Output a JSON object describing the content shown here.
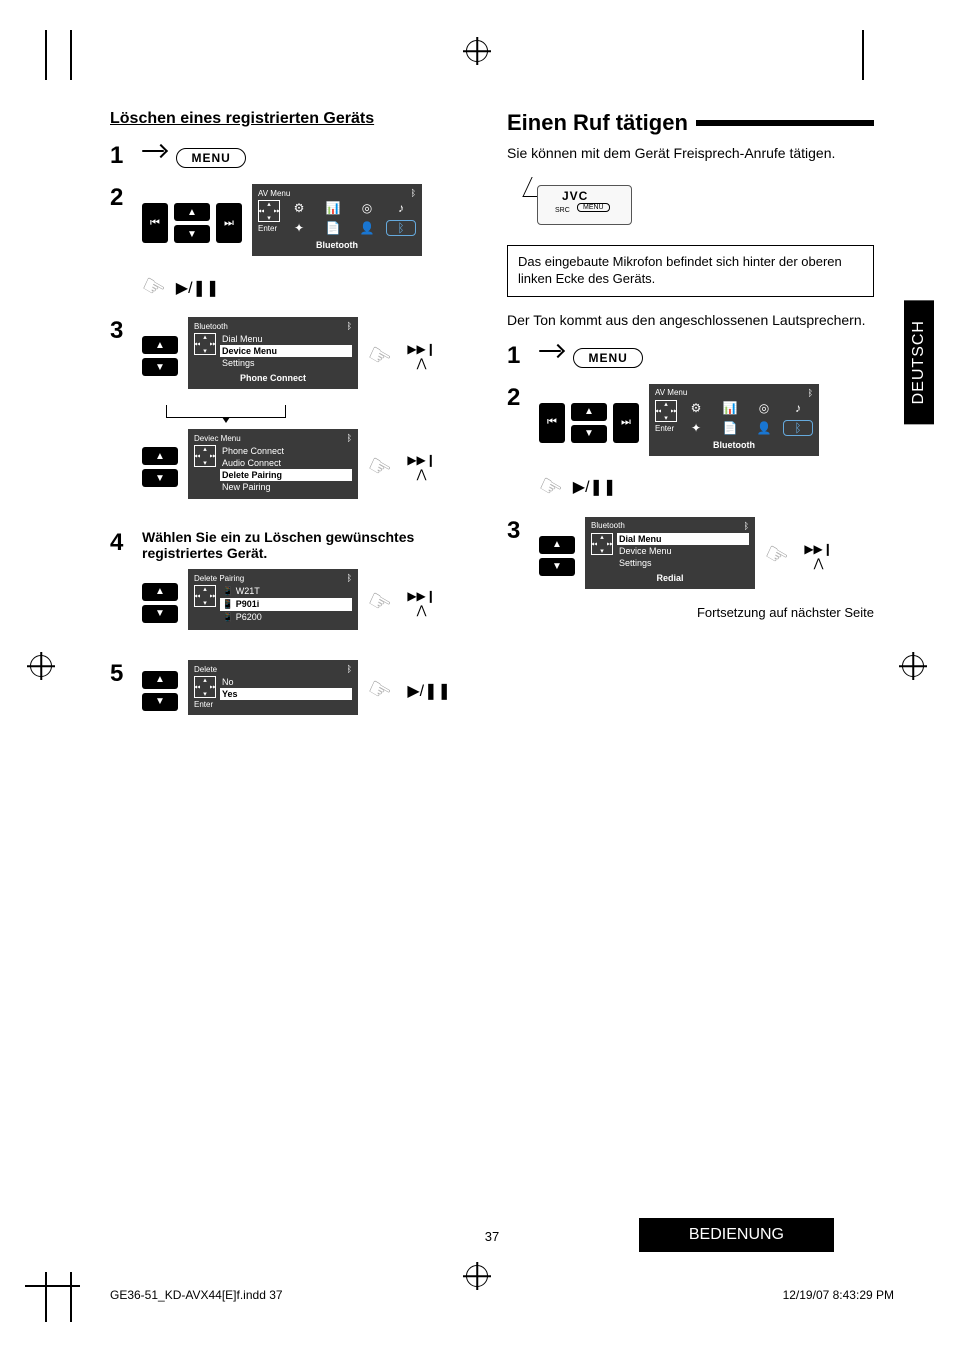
{
  "left": {
    "heading": "Löschen eines registrierten Geräts",
    "step1": {
      "menu_label": "MENU"
    },
    "step2": {
      "screen_title": "AV Menu",
      "enter_label": "Enter",
      "footer": "Bluetooth"
    },
    "step3a": {
      "screen_title": "Bluetooth",
      "items": [
        "Dial Menu",
        "Device Menu",
        "Settings"
      ],
      "highlight_index": 1,
      "footer": "Phone Connect"
    },
    "step3b": {
      "screen_title": "Deviec Menu",
      "items": [
        "Phone Connect",
        "Audio Connect",
        "Delete Pairing",
        "New Pairing"
      ],
      "highlight_index": 2
    },
    "step4_text": "Wählen Sie ein zu Löschen gewünschtes registriertes Gerät.",
    "step4_screen": {
      "screen_title": "Delete Pairing",
      "items": [
        "W21T",
        "P901i",
        "P6200"
      ],
      "highlight_index": 1
    },
    "step5_screen": {
      "screen_title": "Delete",
      "items": [
        "No",
        "Yes"
      ],
      "highlight_index": 1,
      "enter_label": "Enter"
    }
  },
  "right": {
    "heading": "Einen Ruf tätigen",
    "intro": "Sie können mit dem Gerät Freisprech-Anrufe tätigen.",
    "device": {
      "brand": "JVC",
      "src": "SRC",
      "menu": "MENU"
    },
    "note": "Das eingebaute Mikrofon befindet sich hinter der oberen linken Ecke des Geräts.",
    "speaker_text": "Der Ton kommt aus den angeschlossenen Lautsprechern.",
    "step1": {
      "menu_label": "MENU"
    },
    "step2": {
      "screen_title": "AV Menu",
      "enter_label": "Enter",
      "footer": "Bluetooth"
    },
    "step3": {
      "screen_title": "Bluetooth",
      "items": [
        "Dial Menu",
        "Device Menu",
        "Settings"
      ],
      "highlight_index": 0,
      "footer": "Redial"
    },
    "continued": "Fortsetzung auf nächster Seite"
  },
  "side_tab": "DEUTSCH",
  "footer_tab": "BEDIENUNG",
  "page_number": "37",
  "indd": {
    "file": "GE36-51_KD-AVX44[E]f.indd   37",
    "timestamp": "12/19/07   8:43:29 PM"
  },
  "colors": {
    "screen_bg": "#3a3a3a",
    "hand": "#999999",
    "bt_accent": "#66aadd"
  }
}
